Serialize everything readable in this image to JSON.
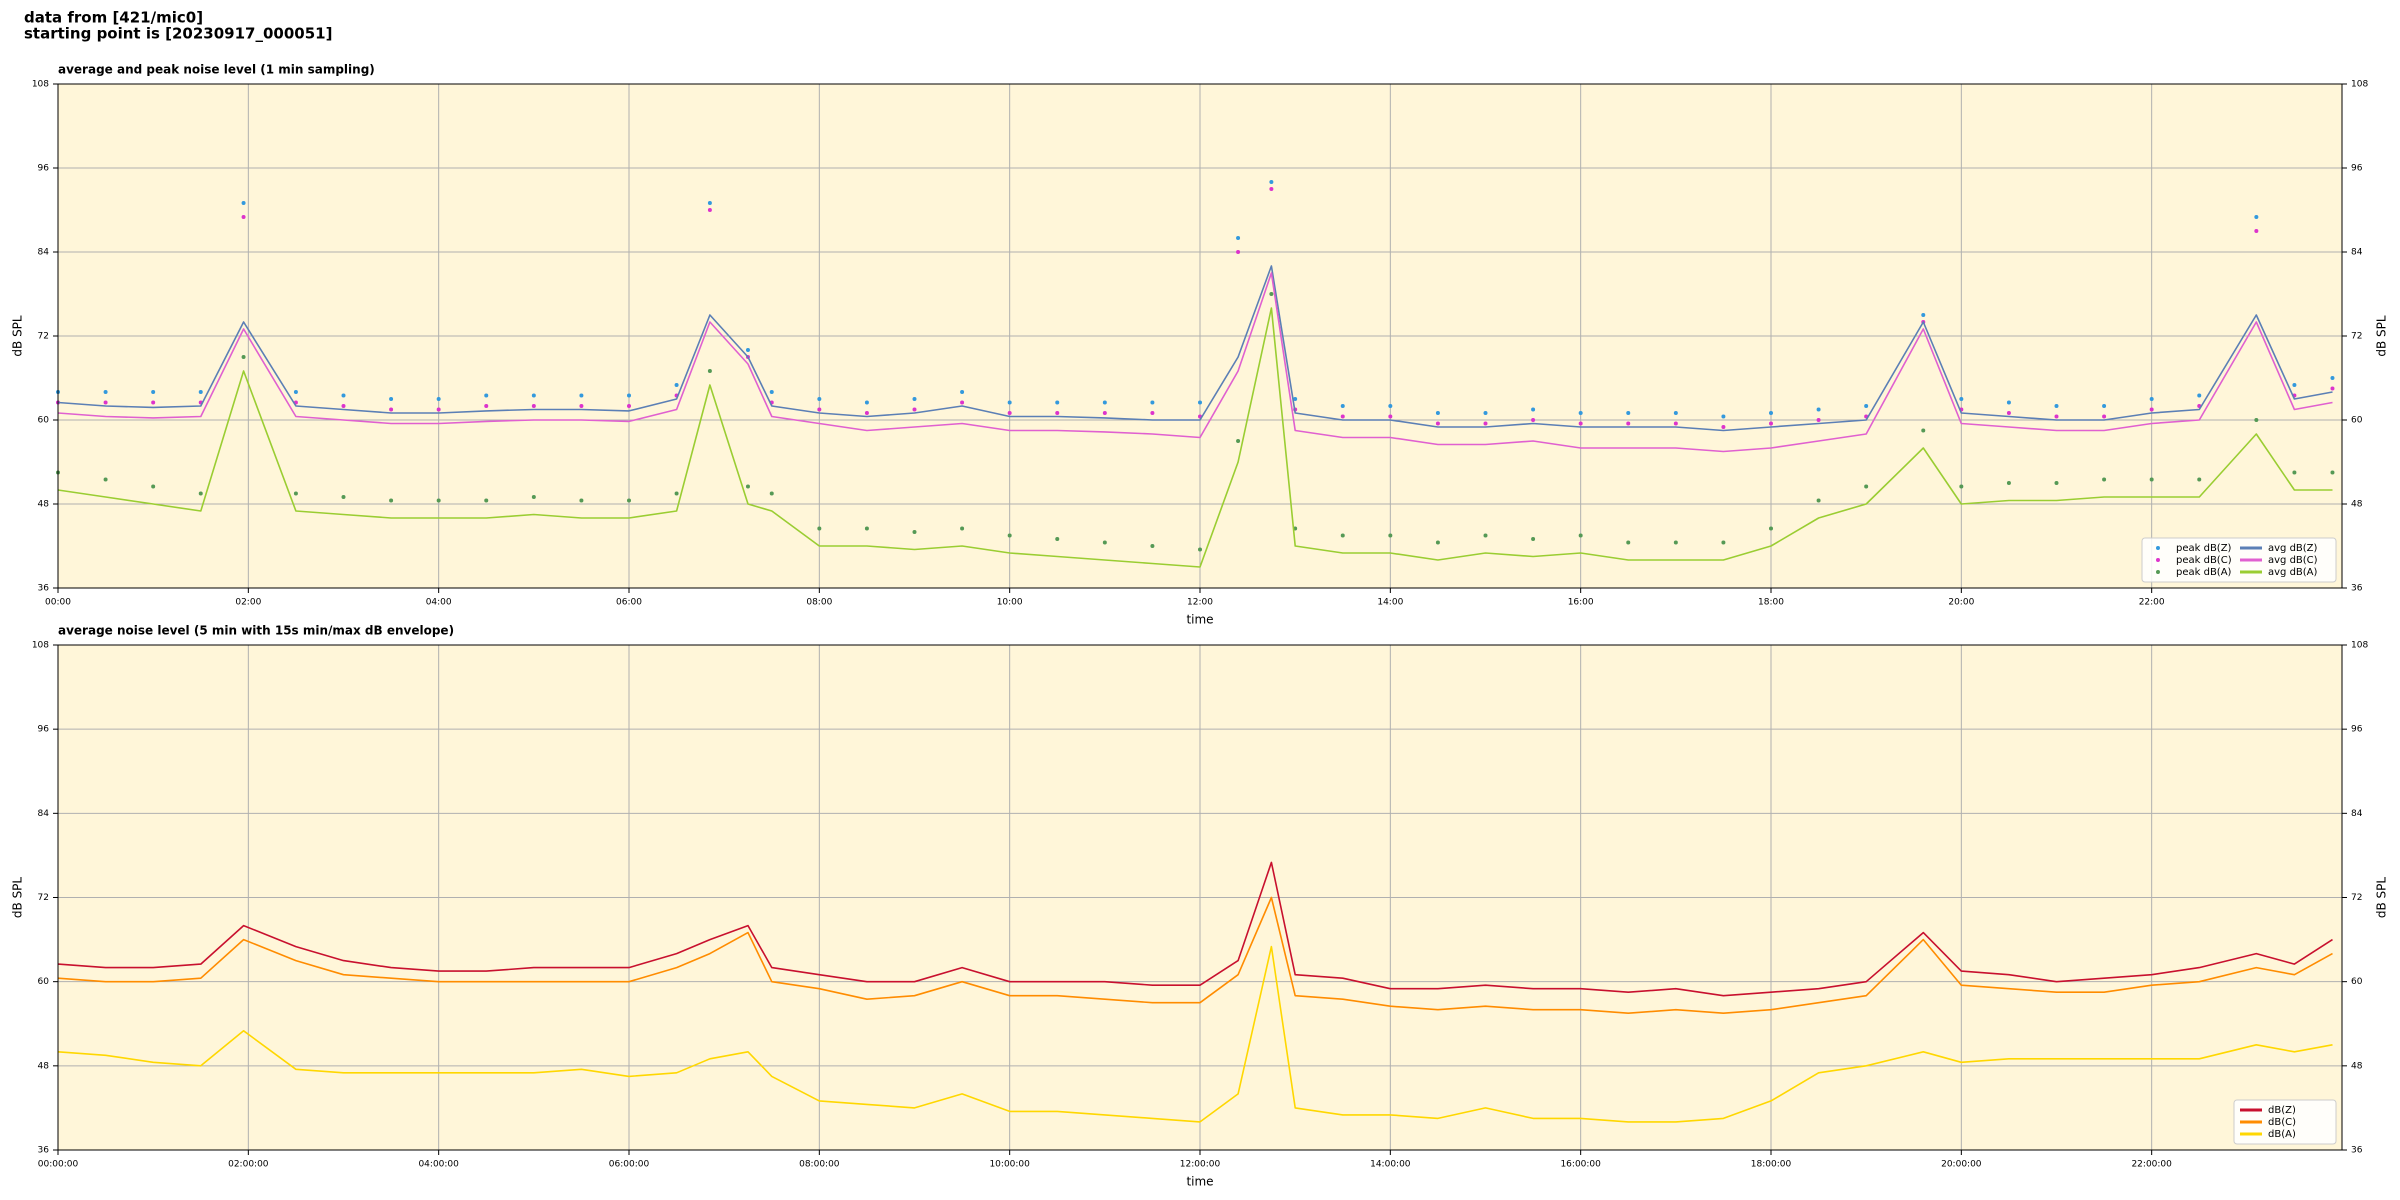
{
  "header": {
    "lines": [
      "data from [421/mic0]",
      "starting point is [20230917_000051]"
    ]
  },
  "chart_data": [
    {
      "type": "line",
      "title": "average and peak noise level (1 min sampling)",
      "x_label": "time",
      "y_label": "dB SPL",
      "xlim": [
        0,
        24
      ],
      "xticks": [
        {
          "value": 0,
          "label": "00:00"
        },
        {
          "value": 2,
          "label": "02:00"
        },
        {
          "value": 4,
          "label": "04:00"
        },
        {
          "value": 6,
          "label": "06:00"
        },
        {
          "value": 8,
          "label": "08:00"
        },
        {
          "value": 10,
          "label": "10:00"
        },
        {
          "value": 12,
          "label": "12:00"
        },
        {
          "value": 14,
          "label": "14:00"
        },
        {
          "value": 16,
          "label": "16:00"
        },
        {
          "value": 18,
          "label": "18:00"
        },
        {
          "value": 20,
          "label": "20:00"
        },
        {
          "value": 22,
          "label": "22:00"
        }
      ],
      "ylim": [
        36,
        108
      ],
      "yticks": [
        36,
        48,
        60,
        72,
        84,
        96,
        108
      ],
      "grid": true,
      "legend": "lower right",
      "legend_columns": 2,
      "x": [
        0,
        0.5,
        1,
        1.5,
        1.95,
        2.5,
        3,
        3.5,
        4,
        4.5,
        5,
        5.5,
        6,
        6.5,
        6.85,
        7.25,
        7.5,
        8,
        8.5,
        9,
        9.5,
        10,
        10.5,
        11,
        11.5,
        12,
        12.4,
        12.75,
        13,
        13.5,
        14,
        14.5,
        15,
        15.5,
        16,
        16.5,
        17,
        17.5,
        18,
        18.5,
        19,
        19.6,
        20,
        20.5,
        21,
        21.5,
        22,
        22.5,
        23.1,
        23.5,
        23.9
      ],
      "series": [
        {
          "name": "peak dB(Z)",
          "style": "points",
          "color": "#3399dd",
          "values": [
            64,
            64,
            64,
            64,
            91,
            64,
            63.5,
            63,
            63,
            63.5,
            63.5,
            63.5,
            63.5,
            65,
            91,
            70,
            64,
            63,
            62.5,
            63,
            64,
            62.5,
            62.5,
            62.5,
            62.5,
            62.5,
            86,
            94,
            63,
            62,
            62,
            61,
            61,
            61.5,
            61,
            61,
            61,
            60.5,
            61,
            61.5,
            62,
            75,
            63,
            62.5,
            62,
            62,
            63,
            63.5,
            89,
            65,
            66
          ]
        },
        {
          "name": "peak dB(C)",
          "style": "points",
          "color": "#dd33cc",
          "values": [
            62.5,
            62.5,
            62.5,
            62.5,
            89,
            62.5,
            62,
            61.5,
            61.5,
            62,
            62,
            62,
            62,
            63.5,
            90,
            69,
            62.5,
            61.5,
            61,
            61.5,
            62.5,
            61,
            61,
            61,
            61,
            60.5,
            84,
            93,
            61.5,
            60.5,
            60.5,
            59.5,
            59.5,
            60,
            59.5,
            59.5,
            59.5,
            59,
            59.5,
            60,
            60.5,
            74,
            61.5,
            61,
            60.5,
            60.5,
            61.5,
            62,
            87,
            63.5,
            64.5
          ]
        },
        {
          "name": "peak dB(A)",
          "style": "points",
          "color": "#559955",
          "values": [
            52.5,
            51.5,
            50.5,
            49.5,
            69,
            49.5,
            49,
            48.5,
            48.5,
            48.5,
            49,
            48.5,
            48.5,
            49.5,
            67,
            50.5,
            49.5,
            44.5,
            44.5,
            44,
            44.5,
            43.5,
            43,
            42.5,
            42,
            41.5,
            57,
            78,
            44.5,
            43.5,
            43.5,
            42.5,
            43.5,
            43,
            43.5,
            42.5,
            42.5,
            42.5,
            44.5,
            48.5,
            50.5,
            58.5,
            50.5,
            51,
            51,
            51.5,
            51.5,
            51.5,
            60,
            52.5,
            52.5
          ]
        },
        {
          "name": "avg dB(Z)",
          "style": "line",
          "color": "#5b7fb5",
          "values": [
            62.5,
            62,
            61.8,
            62,
            74,
            62,
            61.5,
            61,
            61,
            61.3,
            61.5,
            61.5,
            61.3,
            63,
            75,
            69,
            62,
            61,
            60.5,
            61,
            62,
            60.5,
            60.5,
            60.3,
            60,
            60,
            69,
            82,
            61,
            60,
            60,
            59,
            59,
            59.5,
            59,
            59,
            59,
            58.5,
            59,
            59.5,
            60,
            74,
            61,
            60.5,
            60,
            60,
            61,
            61.5,
            75,
            63,
            64
          ]
        },
        {
          "name": "avg dB(C)",
          "style": "line",
          "color": "#e060d0",
          "values": [
            61,
            60.5,
            60.3,
            60.5,
            73,
            60.5,
            60,
            59.5,
            59.5,
            59.8,
            60,
            60,
            59.8,
            61.5,
            74,
            68,
            60.5,
            59.5,
            58.5,
            59,
            59.5,
            58.5,
            58.5,
            58.3,
            58,
            57.5,
            67,
            81,
            58.5,
            57.5,
            57.5,
            56.5,
            56.5,
            57,
            56,
            56,
            56,
            55.5,
            56,
            57,
            58,
            73,
            59.5,
            59,
            58.5,
            58.5,
            59.5,
            60,
            74,
            61.5,
            62.5
          ]
        },
        {
          "name": "avg dB(A)",
          "style": "line",
          "color": "#9acd32",
          "values": [
            50,
            49,
            48,
            47,
            67,
            47,
            46.5,
            46,
            46,
            46,
            46.5,
            46,
            46,
            47,
            65,
            48,
            47,
            42,
            42,
            41.5,
            42,
            41,
            40.5,
            40,
            39.5,
            39,
            54,
            76,
            42,
            41,
            41,
            40,
            41,
            40.5,
            41,
            40,
            40,
            40,
            42,
            46,
            48,
            56,
            48,
            48.5,
            48.5,
            49,
            49,
            49,
            58,
            50,
            50
          ]
        }
      ]
    },
    {
      "type": "line",
      "title": "average noise level (5 min with 15s min/max dB envelope)",
      "x_label": "time",
      "y_label": "dB SPL",
      "xlim": [
        0,
        24
      ],
      "xticks": [
        {
          "value": 0,
          "label": "00:00:00"
        },
        {
          "value": 2,
          "label": "02:00:00"
        },
        {
          "value": 4,
          "label": "04:00:00"
        },
        {
          "value": 6,
          "label": "06:00:00"
        },
        {
          "value": 8,
          "label": "08:00:00"
        },
        {
          "value": 10,
          "label": "10:00:00"
        },
        {
          "value": 12,
          "label": "12:00:00"
        },
        {
          "value": 14,
          "label": "14:00:00"
        },
        {
          "value": 16,
          "label": "16:00:00"
        },
        {
          "value": 18,
          "label": "18:00:00"
        },
        {
          "value": 20,
          "label": "20:00:00"
        },
        {
          "value": 22,
          "label": "22:00:00"
        }
      ],
      "ylim": [
        36,
        108
      ],
      "yticks": [
        36,
        48,
        60,
        72,
        84,
        96,
        108
      ],
      "grid": true,
      "legend": "lower right",
      "legend_columns": 1,
      "x": [
        0,
        0.5,
        1,
        1.5,
        1.95,
        2.5,
        3,
        3.5,
        4,
        4.5,
        5,
        5.5,
        6,
        6.5,
        6.85,
        7.25,
        7.5,
        8,
        8.5,
        9,
        9.5,
        10,
        10.5,
        11,
        11.5,
        12,
        12.4,
        12.75,
        13,
        13.5,
        14,
        14.5,
        15,
        15.5,
        16,
        16.5,
        17,
        17.5,
        18,
        18.5,
        19,
        19.6,
        20,
        20.5,
        21,
        21.5,
        22,
        22.5,
        23.1,
        23.5,
        23.9
      ],
      "series": [
        {
          "name": "dB(Z)",
          "style": "line",
          "color": "#c8102e",
          "values": [
            62.5,
            62,
            62,
            62.5,
            68,
            65,
            63,
            62,
            61.5,
            61.5,
            62,
            62,
            62,
            64,
            66,
            68,
            62,
            61,
            60,
            60,
            62,
            60,
            60,
            60,
            59.5,
            59.5,
            63,
            77,
            61,
            60.5,
            59,
            59,
            59.5,
            59,
            59,
            58.5,
            59,
            58,
            58.5,
            59,
            60,
            67,
            61.5,
            61,
            60,
            60.5,
            61,
            62,
            64,
            62.5,
            66
          ]
        },
        {
          "name": "dB(C)",
          "style": "line",
          "color": "#ff8c00",
          "values": [
            60.5,
            60,
            60,
            60.5,
            66,
            63,
            61,
            60.5,
            60,
            60,
            60,
            60,
            60,
            62,
            64,
            67,
            60,
            59,
            57.5,
            58,
            60,
            58,
            58,
            57.5,
            57,
            57,
            61,
            72,
            58,
            57.5,
            56.5,
            56,
            56.5,
            56,
            56,
            55.5,
            56,
            55.5,
            56,
            57,
            58,
            66,
            59.5,
            59,
            58.5,
            58.5,
            59.5,
            60,
            62,
            61,
            64
          ]
        },
        {
          "name": "dB(A)",
          "style": "line",
          "color": "#ffd700",
          "values": [
            50,
            49.5,
            48.5,
            48,
            53,
            47.5,
            47,
            47,
            47,
            47,
            47,
            47.5,
            46.5,
            47,
            49,
            50,
            46.5,
            43,
            42.5,
            42,
            44,
            41.5,
            41.5,
            41,
            40.5,
            40,
            44,
            65,
            42,
            41,
            41,
            40.5,
            42,
            40.5,
            40.5,
            40,
            40,
            40.5,
            43,
            47,
            48,
            50,
            48.5,
            49,
            49,
            49,
            49,
            49,
            51,
            50,
            51
          ]
        }
      ]
    }
  ]
}
